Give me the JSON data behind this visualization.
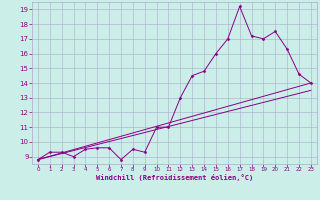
{
  "xlabel": "Windchill (Refroidissement éolien,°C)",
  "background_color": "#cceee8",
  "grid_color": "#aaaacc",
  "line_color": "#880088",
  "xlim": [
    -0.5,
    23.5
  ],
  "ylim": [
    8.5,
    19.5
  ],
  "xticks": [
    0,
    1,
    2,
    3,
    4,
    5,
    6,
    7,
    8,
    9,
    10,
    11,
    12,
    13,
    14,
    15,
    16,
    17,
    18,
    19,
    20,
    21,
    22,
    23
  ],
  "yticks": [
    9,
    10,
    11,
    12,
    13,
    14,
    15,
    16,
    17,
    18,
    19
  ],
  "series1_x": [
    0,
    1,
    2,
    3,
    4,
    5,
    6,
    7,
    8,
    9,
    10,
    11,
    12,
    13,
    14,
    15,
    16,
    17,
    18,
    19,
    20,
    21,
    22,
    23
  ],
  "series1_y": [
    8.8,
    9.3,
    9.3,
    9.0,
    9.5,
    9.6,
    9.6,
    8.8,
    9.5,
    9.3,
    11.0,
    11.0,
    13.0,
    14.5,
    14.8,
    16.0,
    17.0,
    19.2,
    17.2,
    17.0,
    17.5,
    16.3,
    14.6,
    14.0
  ],
  "series2_x": [
    0,
    23
  ],
  "series2_y": [
    8.8,
    13.5
  ],
  "series3_x": [
    0,
    23
  ],
  "series3_y": [
    8.8,
    14.0
  ]
}
